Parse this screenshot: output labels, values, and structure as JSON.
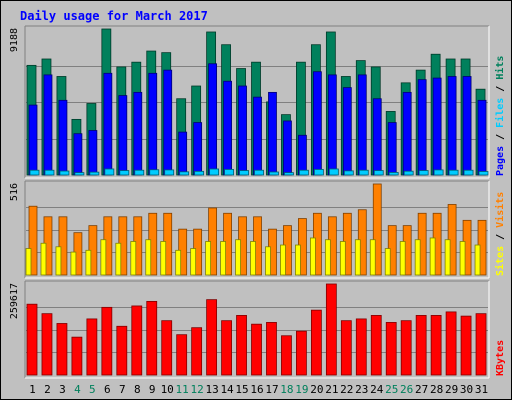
{
  "title": "Daily usage for March 2017",
  "colors": {
    "background": "#c0c0c0",
    "panel": "#c0c0c0",
    "title": "#0000ff",
    "pages": "#0000ff",
    "files": "#00ccff",
    "hits": "#00805c",
    "sites": "#ffff00",
    "visits": "#ff8000",
    "kbytes": "#ff0000",
    "weekend_label": "#00805c",
    "weekday_label": "#000000"
  },
  "chart_data": [
    {
      "type": "bar",
      "panel": "hits_files_pages",
      "categories": [
        "1",
        "2",
        "3",
        "4",
        "5",
        "6",
        "7",
        "8",
        "9",
        "10",
        "11",
        "12",
        "13",
        "14",
        "15",
        "16",
        "17",
        "18",
        "19",
        "20",
        "21",
        "22",
        "23",
        "24",
        "25",
        "26",
        "27",
        "28",
        "29",
        "30",
        "31"
      ],
      "weekend_categories": [
        "4",
        "5",
        "11",
        "12",
        "18",
        "19",
        "25",
        "26"
      ],
      "ymax_label": "9188",
      "ylim": [
        0,
        9188
      ],
      "legend": [
        {
          "name": "Pages",
          "color": "#0000ff"
        },
        {
          "name": "Files",
          "color": "#00ccff"
        },
        {
          "name": "Hits",
          "color": "#00805c"
        }
      ],
      "series": [
        {
          "name": "Hits",
          "values": [
            6900,
            7300,
            6200,
            3500,
            4500,
            9188,
            6800,
            7100,
            7800,
            7700,
            4800,
            5600,
            9000,
            8200,
            6700,
            7100,
            4600,
            3800,
            7100,
            8200,
            9000,
            6200,
            7200,
            6800,
            4000,
            5800,
            6600,
            7600,
            7300,
            7300,
            5400
          ]
        },
        {
          "name": "Files",
          "values": [
            300,
            300,
            250,
            150,
            180,
            380,
            280,
            300,
            330,
            320,
            200,
            230,
            380,
            350,
            280,
            300,
            190,
            150,
            300,
            350,
            380,
            260,
            300,
            280,
            160,
            240,
            280,
            320,
            300,
            300,
            220
          ]
        },
        {
          "name": "Pages",
          "values": [
            4400,
            6300,
            4700,
            2600,
            2800,
            6400,
            5000,
            5200,
            6400,
            6600,
            2700,
            3300,
            7000,
            5900,
            5600,
            4900,
            5200,
            3400,
            2500,
            6500,
            6300,
            5500,
            6300,
            4800,
            3300,
            5200,
            6000,
            6100,
            6200,
            6200,
            4700
          ]
        }
      ]
    },
    {
      "type": "bar",
      "panel": "visits_sites",
      "categories": [
        "1",
        "2",
        "3",
        "4",
        "5",
        "6",
        "7",
        "8",
        "9",
        "10",
        "11",
        "12",
        "13",
        "14",
        "15",
        "16",
        "17",
        "18",
        "19",
        "20",
        "21",
        "22",
        "23",
        "24",
        "25",
        "26",
        "27",
        "28",
        "29",
        "30",
        "31"
      ],
      "ymax_label": "516",
      "ylim": [
        0,
        516
      ],
      "legend": [
        {
          "name": "Sites",
          "color": "#ffff00"
        },
        {
          "name": "Visits",
          "color": "#ff8000"
        }
      ],
      "series": [
        {
          "name": "Visits",
          "values": [
            390,
            330,
            330,
            240,
            280,
            330,
            330,
            330,
            350,
            350,
            260,
            260,
            380,
            350,
            330,
            330,
            260,
            280,
            320,
            350,
            330,
            350,
            370,
            516,
            280,
            280,
            350,
            350,
            400,
            310,
            310
          ]
        },
        {
          "name": "Sites",
          "values": [
            150,
            180,
            160,
            130,
            140,
            200,
            180,
            190,
            200,
            190,
            140,
            150,
            190,
            190,
            200,
            190,
            160,
            170,
            170,
            210,
            200,
            190,
            200,
            200,
            150,
            190,
            200,
            210,
            200,
            190,
            170
          ]
        }
      ]
    },
    {
      "type": "bar",
      "panel": "kbytes",
      "categories": [
        "1",
        "2",
        "3",
        "4",
        "5",
        "6",
        "7",
        "8",
        "9",
        "10",
        "11",
        "12",
        "13",
        "14",
        "15",
        "16",
        "17",
        "18",
        "19",
        "20",
        "21",
        "22",
        "23",
        "24",
        "25",
        "26",
        "27",
        "28",
        "29",
        "30",
        "31"
      ],
      "ymax_label": "259617",
      "ylim": [
        0,
        259617
      ],
      "legend": [
        {
          "name": "KBytes",
          "color": "#ff0000"
        }
      ],
      "series": [
        {
          "name": "KBytes",
          "values": [
            202000,
            175000,
            147000,
            108000,
            160000,
            193000,
            139000,
            197000,
            210000,
            155000,
            115000,
            135000,
            215000,
            155000,
            170000,
            145000,
            150000,
            112000,
            125000,
            185000,
            259617,
            155000,
            160000,
            170000,
            150000,
            155000,
            170000,
            170000,
            180000,
            168000,
            175000
          ]
        }
      ]
    }
  ]
}
